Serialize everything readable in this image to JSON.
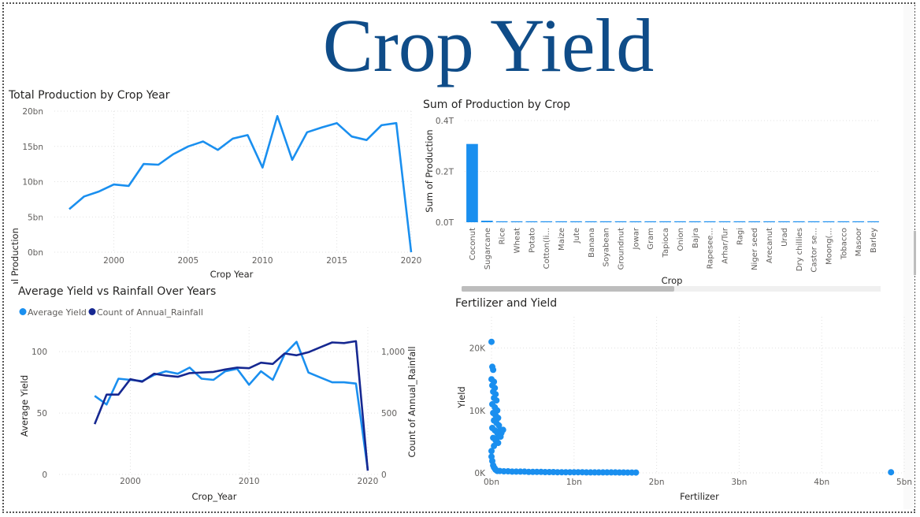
{
  "page": {
    "title": "Crop Yield"
  },
  "colors": {
    "title": "#0f4c88",
    "light_blue": "#1a8fef",
    "dark_blue": "#162891",
    "axis_text": "#605e5c",
    "label_text": "#252423",
    "grid": "#e1e1e1",
    "scroll_thumb": "#bdbdbd"
  },
  "chart_data": [
    {
      "id": "total_production",
      "type": "line",
      "title": "Total Production by Crop Year",
      "xlabel": "Crop Year",
      "ylabel": "Total Production",
      "xlim": [
        1996,
        2020
      ],
      "ylim": [
        0,
        20
      ],
      "xticks": [
        2000,
        2005,
        2010,
        2015,
        2020
      ],
      "yticks": [
        0,
        5,
        10,
        15,
        20
      ],
      "ytick_suffix": "bn",
      "grid": true,
      "series": [
        {
          "color": "#1a8fef",
          "x": [
            1997,
            1998,
            1999,
            2000,
            2001,
            2002,
            2003,
            2004,
            2005,
            2006,
            2007,
            2008,
            2009,
            2010,
            2011,
            2012,
            2013,
            2014,
            2015,
            2016,
            2017,
            2018,
            2019,
            2020
          ],
          "y": [
            6.1,
            7.9,
            8.6,
            9.6,
            9.4,
            12.5,
            12.4,
            13.9,
            15.0,
            15.7,
            14.5,
            16.1,
            16.6,
            12.0,
            19.3,
            13.1,
            17.0,
            17.7,
            18.3,
            16.4,
            15.9,
            18.0,
            18.3,
            0.0
          ]
        }
      ]
    },
    {
      "id": "production_by_crop",
      "type": "bar",
      "title": "Sum of Production by Crop",
      "xlabel": "Crop",
      "ylabel": "Sum of Production",
      "ylim": [
        0,
        0.4
      ],
      "yticks": [
        0,
        0.2,
        0.4
      ],
      "ytick_labels": [
        "0.0T",
        "0.2T",
        "0.4T"
      ],
      "grid": true,
      "scrollbar": {
        "visible_fraction": 0.5
      },
      "categories": [
        "Coconut",
        "Sugarcane",
        "Rice",
        "Wheat",
        "Potato",
        "Cotton(li...",
        "Maize",
        "Jute",
        "Banana",
        "Soyabean",
        "Groundnut",
        "Jowar",
        "Gram",
        "Tapioca",
        "Onion",
        "Bajra",
        "Rapesee...",
        "Arhar/Tur",
        "Ragi",
        "Niger seed",
        "Arecanut",
        "Urad",
        "Dry chillies",
        "Castor se...",
        "Moong(...",
        "Tobacco",
        "Masoor",
        "Barley"
      ],
      "values": [
        0.308,
        0.006,
        0.0012,
        0.0011,
        0.0008,
        0.0007,
        0.0006,
        0.0005,
        0.0005,
        0.0004,
        0.0003,
        0.0003,
        0.0002,
        0.0002,
        0.0002,
        0.0002,
        0.0002,
        0.0001,
        0.0001,
        0.0001,
        0.0001,
        0.0001,
        0.0001,
        0.0001,
        0.0001,
        0.0001,
        0.0001,
        0.0001
      ],
      "color": "#1a8fef"
    },
    {
      "id": "yield_vs_rainfall",
      "type": "line",
      "title": "Average Yield vs Rainfall Over Years",
      "xlabel": "Crop_Year",
      "ylabel": "Average Yield",
      "ylabel_right": "Count of Annual_Rainfall",
      "xlim": [
        1994,
        2021
      ],
      "ylim": [
        0,
        120
      ],
      "ylim_right": [
        0,
        1200
      ],
      "xticks": [
        2000,
        2010,
        2020
      ],
      "yticks": [
        0,
        50,
        100
      ],
      "yticks_right": [
        0,
        500,
        1000
      ],
      "ytick_labels_right": [
        "0",
        "500",
        "1,000"
      ],
      "grid": true,
      "legend": "top-left",
      "series": [
        {
          "name": "Average Yield",
          "axis": "left",
          "color": "#1a8fef",
          "x": [
            1997,
            1998,
            1999,
            2000,
            2001,
            2002,
            2003,
            2004,
            2005,
            2006,
            2007,
            2008,
            2009,
            2010,
            2011,
            2012,
            2013,
            2014,
            2015,
            2016,
            2017,
            2018,
            2019,
            2020
          ],
          "y": [
            64,
            57,
            78,
            77,
            76,
            81,
            84,
            82,
            87,
            78,
            77,
            84,
            86,
            73,
            84,
            77,
            98,
            108,
            83,
            79,
            75,
            75,
            74,
            4
          ]
        },
        {
          "name": "Count of Annual_Rainfall",
          "axis": "right",
          "color": "#162891",
          "x": [
            1997,
            1998,
            1999,
            2000,
            2001,
            2002,
            2003,
            2004,
            2005,
            2006,
            2007,
            2008,
            2009,
            2010,
            2011,
            2012,
            2013,
            2014,
            2015,
            2016,
            2017,
            2018,
            2019,
            2020
          ],
          "y": [
            410,
            650,
            650,
            775,
            755,
            820,
            805,
            795,
            825,
            830,
            835,
            855,
            870,
            865,
            910,
            900,
            985,
            970,
            995,
            1035,
            1075,
            1070,
            1085,
            30
          ]
        }
      ]
    },
    {
      "id": "fertilizer_yield",
      "type": "scatter",
      "title": "Fertilizer and Yield",
      "xlabel": "Fertilizer",
      "ylabel": "Yield",
      "xlim": [
        0,
        5
      ],
      "ylim": [
        0,
        25
      ],
      "xticks": [
        0,
        1,
        2,
        3,
        4,
        5
      ],
      "xtick_labels": [
        "0bn",
        "1bn",
        "2bn",
        "3bn",
        "4bn",
        "5bn"
      ],
      "yticks": [
        0,
        10,
        20
      ],
      "ytick_labels": [
        "0K",
        "10K",
        "20K"
      ],
      "grid": true,
      "color": "#1a8fef",
      "points": [
        [
          0.0,
          21
        ],
        [
          0.01,
          17
        ],
        [
          0.02,
          16.5
        ],
        [
          0.0,
          15
        ],
        [
          0.03,
          14.6
        ],
        [
          0.01,
          14
        ],
        [
          0.04,
          13.6
        ],
        [
          0.02,
          13
        ],
        [
          0.05,
          12.6
        ],
        [
          0.03,
          12
        ],
        [
          0.06,
          11.6
        ],
        [
          0.01,
          11
        ],
        [
          0.04,
          10.5
        ],
        [
          0.07,
          10
        ],
        [
          0.02,
          9.6
        ],
        [
          0.05,
          9.2
        ],
        [
          0.08,
          8.8
        ],
        [
          0.03,
          8.4
        ],
        [
          0.06,
          8
        ],
        [
          0.09,
          7.6
        ],
        [
          0.01,
          7.2
        ],
        [
          0.04,
          6.8
        ],
        [
          0.07,
          6.4
        ],
        [
          0.1,
          6.8
        ],
        [
          0.12,
          6.4
        ],
        [
          0.14,
          6.9
        ],
        [
          0.11,
          5.8
        ],
        [
          0.02,
          5.6
        ],
        [
          0.05,
          5.2
        ],
        [
          0.08,
          4.8
        ],
        [
          0.03,
          4.3
        ],
        [
          0.06,
          5.5
        ],
        [
          0.0,
          3.5
        ],
        [
          0.0,
          2.6
        ],
        [
          0.01,
          1.9
        ],
        [
          0.02,
          1.2
        ],
        [
          0.03,
          0.9
        ],
        [
          0.04,
          0.7
        ],
        [
          0.05,
          0.5
        ],
        [
          0.07,
          0.3
        ],
        [
          0.1,
          0.3
        ],
        [
          0.15,
          0.25
        ],
        [
          0.2,
          0.25
        ],
        [
          0.25,
          0.2
        ],
        [
          0.3,
          0.2
        ],
        [
          0.35,
          0.2
        ],
        [
          0.4,
          0.2
        ],
        [
          0.45,
          0.15
        ],
        [
          0.5,
          0.15
        ],
        [
          0.55,
          0.15
        ],
        [
          0.6,
          0.15
        ],
        [
          0.65,
          0.12
        ],
        [
          0.7,
          0.12
        ],
        [
          0.75,
          0.12
        ],
        [
          0.8,
          0.1
        ],
        [
          0.85,
          0.1
        ],
        [
          0.9,
          0.1
        ],
        [
          0.95,
          0.1
        ],
        [
          1.0,
          0.1
        ],
        [
          1.05,
          0.1
        ],
        [
          1.1,
          0.1
        ],
        [
          1.15,
          0.08
        ],
        [
          1.2,
          0.08
        ],
        [
          1.25,
          0.08
        ],
        [
          1.3,
          0.08
        ],
        [
          1.35,
          0.08
        ],
        [
          1.4,
          0.07
        ],
        [
          1.45,
          0.07
        ],
        [
          1.5,
          0.07
        ],
        [
          1.55,
          0.06
        ],
        [
          1.6,
          0.06
        ],
        [
          1.65,
          0.05
        ],
        [
          1.7,
          0.05
        ],
        [
          1.75,
          0.05
        ],
        [
          4.84,
          0.1
        ]
      ]
    }
  ]
}
